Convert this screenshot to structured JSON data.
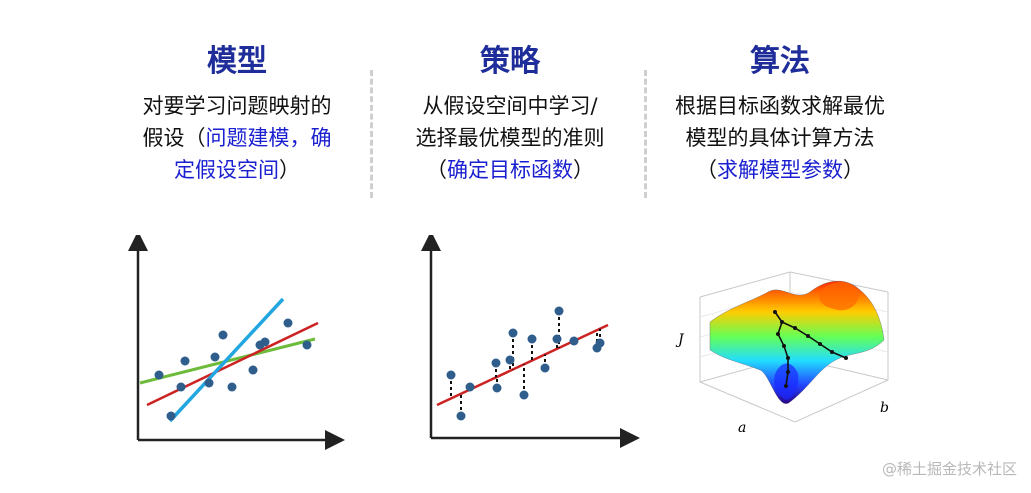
{
  "columns": [
    {
      "title": "模型",
      "lines": [
        [
          "对要学习问题映射的"
        ],
        [
          "假设（",
          "问题建模，确"
        ],
        [
          "定假设空间",
          "）"
        ]
      ]
    },
    {
      "title": "策略",
      "lines": [
        [
          "从假设空间中学习/"
        ],
        [
          "选择最优模型的准则"
        ],
        [
          "（",
          "确定目标函数",
          "）"
        ]
      ]
    },
    {
      "title": "算法",
      "lines": [
        [
          "根据目标函数求解最优"
        ],
        [
          "模型的具体计算方法"
        ],
        [
          "（",
          "求解模型参数",
          "）"
        ]
      ]
    }
  ],
  "plot3d": {
    "z_label": "J",
    "x_label": "a",
    "y_label": "b"
  },
  "watermark": "@稀土掘金技术社区",
  "colors": {
    "title": "#1f2d9a",
    "highlight": "#1a1fd0",
    "points": "#2f5d8c",
    "fit_red": "#cc2222",
    "fit_green": "#6dbb3a",
    "fit_blue": "#22a6e0"
  }
}
